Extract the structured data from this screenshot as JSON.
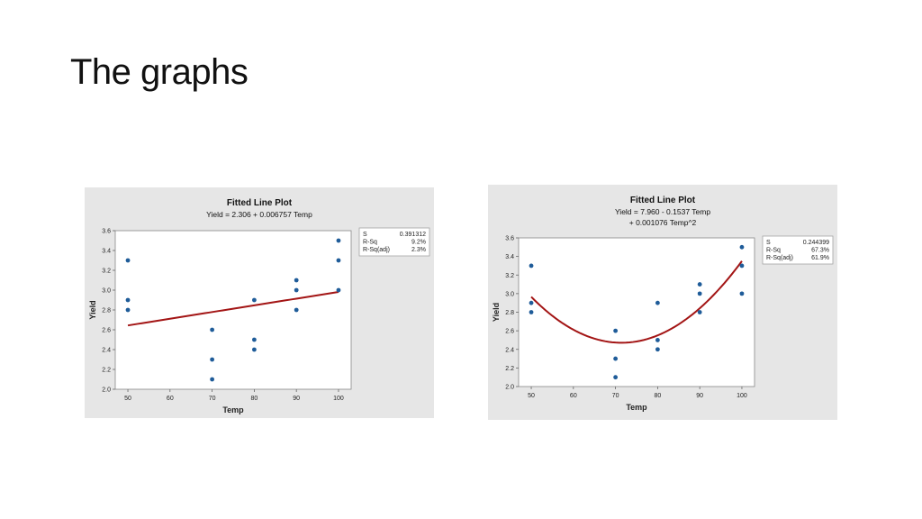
{
  "slide": {
    "title": "The graphs"
  },
  "chart_data": [
    {
      "type": "scatter",
      "fit": "linear",
      "title": "Fitted Line Plot",
      "subtitle_lines": [
        "Yield = 2.306 + 0.006757 Temp"
      ],
      "xlabel": "Temp",
      "ylabel": "Yield",
      "xlim": [
        47,
        103
      ],
      "ylim": [
        2.0,
        3.6
      ],
      "x_ticks": [
        50,
        60,
        70,
        80,
        90,
        100
      ],
      "y_ticks": [
        "2.0",
        "2.2",
        "2.4",
        "2.6",
        "2.8",
        "3.0",
        "3.2",
        "3.4",
        "3.6"
      ],
      "points": [
        {
          "x": 50,
          "y": 3.3
        },
        {
          "x": 50,
          "y": 2.9
        },
        {
          "x": 50,
          "y": 2.8
        },
        {
          "x": 70,
          "y": 2.6
        },
        {
          "x": 70,
          "y": 2.3
        },
        {
          "x": 70,
          "y": 2.1
        },
        {
          "x": 80,
          "y": 2.9
        },
        {
          "x": 80,
          "y": 2.5
        },
        {
          "x": 80,
          "y": 2.4
        },
        {
          "x": 90,
          "y": 3.1
        },
        {
          "x": 90,
          "y": 3.0
        },
        {
          "x": 90,
          "y": 2.8
        },
        {
          "x": 100,
          "y": 3.5
        },
        {
          "x": 100,
          "y": 3.3
        },
        {
          "x": 100,
          "y": 3.0
        }
      ],
      "fit_coefficients": [
        2.306,
        0.006757,
        0
      ],
      "fit_range": [
        50,
        100
      ],
      "stats": [
        {
          "label": "S",
          "value": "0.391312"
        },
        {
          "label": "R-Sq",
          "value": "9.2%"
        },
        {
          "label": "R-Sq(adj)",
          "value": "2.3%"
        }
      ],
      "point_color": "#1f5c99",
      "line_color": "#a31515",
      "legend_placement": "right"
    },
    {
      "type": "scatter",
      "fit": "quadratic",
      "title": "Fitted Line Plot",
      "subtitle_lines": [
        "Yield = 7.960 - 0.1537 Temp",
        "+ 0.001076 Temp^2"
      ],
      "xlabel": "Temp",
      "ylabel": "Yield",
      "xlim": [
        47,
        103
      ],
      "ylim": [
        2.0,
        3.6
      ],
      "x_ticks": [
        50,
        60,
        70,
        80,
        90,
        100
      ],
      "y_ticks": [
        "2.0",
        "2.2",
        "2.4",
        "2.6",
        "2.8",
        "3.0",
        "3.2",
        "3.4",
        "3.6"
      ],
      "points": [
        {
          "x": 50,
          "y": 3.3
        },
        {
          "x": 50,
          "y": 2.9
        },
        {
          "x": 50,
          "y": 2.8
        },
        {
          "x": 70,
          "y": 2.6
        },
        {
          "x": 70,
          "y": 2.3
        },
        {
          "x": 70,
          "y": 2.1
        },
        {
          "x": 80,
          "y": 2.9
        },
        {
          "x": 80,
          "y": 2.5
        },
        {
          "x": 80,
          "y": 2.4
        },
        {
          "x": 90,
          "y": 3.1
        },
        {
          "x": 90,
          "y": 3.0
        },
        {
          "x": 90,
          "y": 2.8
        },
        {
          "x": 100,
          "y": 3.5
        },
        {
          "x": 100,
          "y": 3.3
        },
        {
          "x": 100,
          "y": 3.0
        }
      ],
      "fit_coefficients": [
        7.96,
        -0.1537,
        0.001076
      ],
      "fit_range": [
        50,
        100
      ],
      "stats": [
        {
          "label": "S",
          "value": "0.244399"
        },
        {
          "label": "R-Sq",
          "value": "67.3%"
        },
        {
          "label": "R-Sq(adj)",
          "value": "61.9%"
        }
      ],
      "point_color": "#1f5c99",
      "line_color": "#a31515",
      "legend_placement": "right"
    }
  ]
}
